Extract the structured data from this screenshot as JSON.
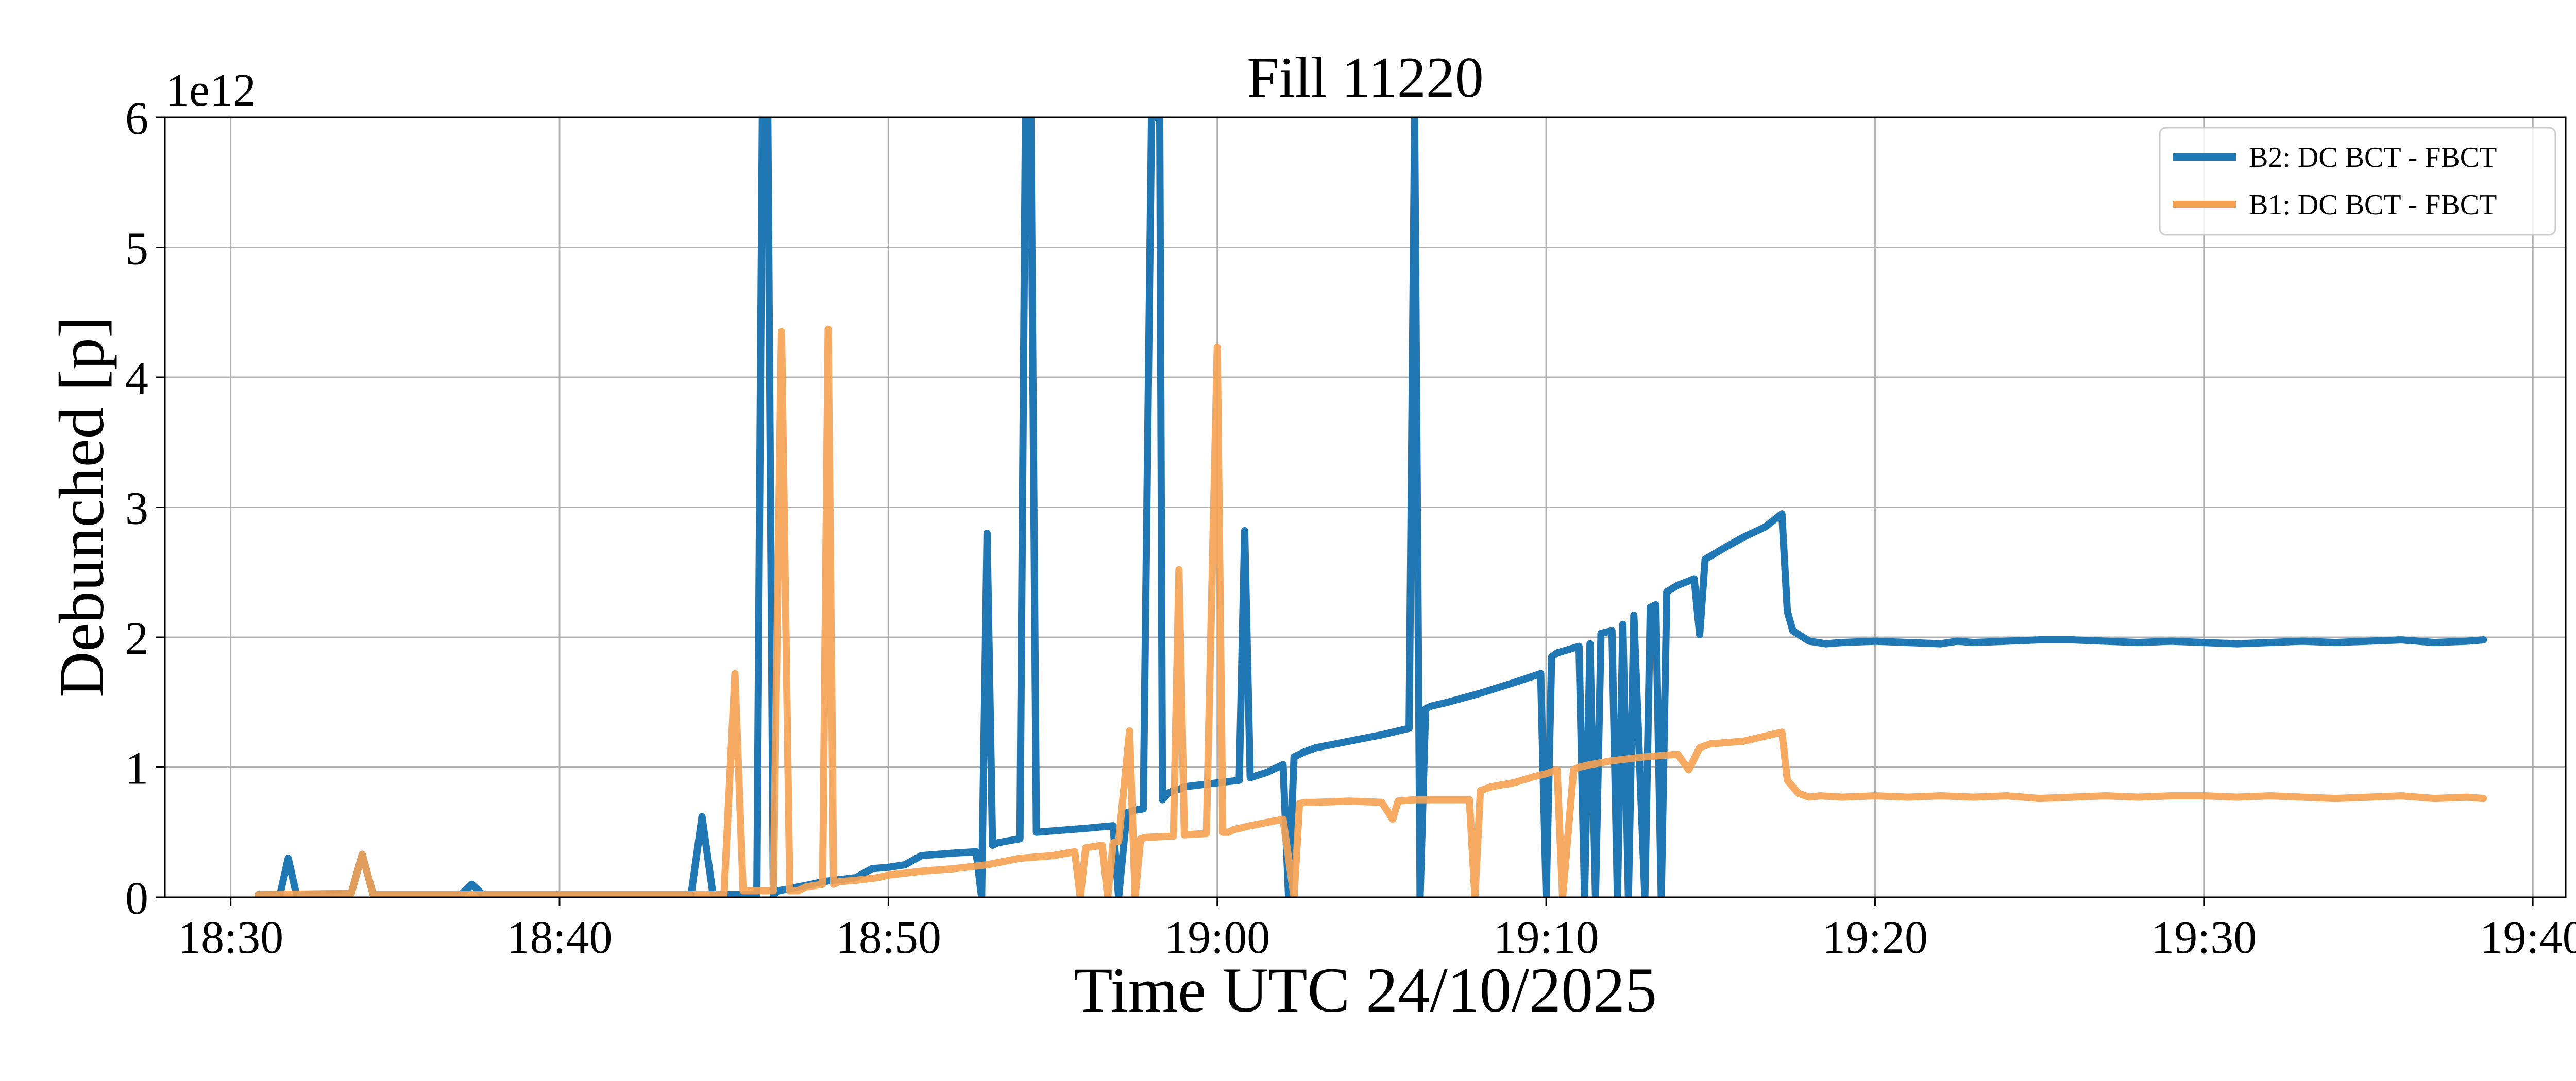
{
  "chart_data": {
    "type": "line",
    "title": "Fill 11220",
    "xlabel": "Time UTC 24/10/2025",
    "ylabel": "Debunched [p]",
    "y_exponent_label": "1e12",
    "xlim": [
      "18:28",
      "19:41"
    ],
    "ylim": [
      0,
      6
    ],
    "y_ticks": [
      0,
      1,
      2,
      3,
      4,
      5,
      6
    ],
    "y_tick_labels": [
      "0",
      "1",
      "2",
      "3",
      "4",
      "5",
      "6"
    ],
    "x_ticks": [
      "18:30",
      "18:40",
      "18:50",
      "19:00",
      "19:10",
      "19:20",
      "19:30",
      "19:40"
    ],
    "grid": true,
    "legend_position": "upper right",
    "series": [
      {
        "name": "B2: DC BCT - FBCT",
        "color": "#1f77b4",
        "x": [
          "18:30:50",
          "18:31:30",
          "18:31:45",
          "18:32:00",
          "18:33:40",
          "18:34:00",
          "18:34:20",
          "18:37:00",
          "18:37:20",
          "18:37:40",
          "18:44:00",
          "18:44:20",
          "18:44:40",
          "18:46:00",
          "18:46:10",
          "18:46:20",
          "18:46:30",
          "18:46:40",
          "18:47:40",
          "18:48:00",
          "18:49:00",
          "18:49:30",
          "18:50:00",
          "18:50:30",
          "18:51:00",
          "18:52:00",
          "18:52:40",
          "18:52:50",
          "18:53:00",
          "18:53:10",
          "18:53:20",
          "18:54:00",
          "18:54:10",
          "18:54:20",
          "18:54:30",
          "18:55:00",
          "18:56:00",
          "18:56:50",
          "18:57:00",
          "18:57:15",
          "18:57:30",
          "18:57:45",
          "18:58:00",
          "18:58:15",
          "18:58:20",
          "18:58:30",
          "18:58:40",
          "18:58:50",
          "18:59:00",
          "19:00:00",
          "19:00:40",
          "19:00:50",
          "19:01:00",
          "19:01:30",
          "19:02:00",
          "19:02:10",
          "19:02:20",
          "19:02:40",
          "19:03:00",
          "19:04:00",
          "19:05:00",
          "19:05:50",
          "19:06:00",
          "19:06:10",
          "19:06:20",
          "19:06:30",
          "19:07:00",
          "19:08:00",
          "19:09:00",
          "19:09:50",
          "19:10:00",
          "19:10:10",
          "19:10:20",
          "19:11:00",
          "19:11:10",
          "19:11:20",
          "19:11:30",
          "19:11:40",
          "19:12:00",
          "19:12:10",
          "19:12:20",
          "19:12:30",
          "19:12:40",
          "19:13:00",
          "19:13:10",
          "19:13:20",
          "19:13:30",
          "19:13:40",
          "19:14:00",
          "19:14:30",
          "19:14:40",
          "19:14:50",
          "19:15:10",
          "19:15:30",
          "19:16:00",
          "19:16:40",
          "19:17:10",
          "19:17:20",
          "19:17:30",
          "19:18:00",
          "19:18:30",
          "19:19:00",
          "19:20:00",
          "19:21:00",
          "19:22:00",
          "19:22:30",
          "19:23:00",
          "19:24:00",
          "19:25:00",
          "19:26:00",
          "19:27:00",
          "19:28:00",
          "19:29:00",
          "19:30:00",
          "19:31:00",
          "19:32:00",
          "19:33:00",
          "19:34:00",
          "19:35:00",
          "19:36:00",
          "19:37:00",
          "19:38:00",
          "19:38:30"
        ],
        "values": [
          0.02,
          0.02,
          0.3,
          0.02,
          0.03,
          0.33,
          0.02,
          0.02,
          0.1,
          0.02,
          0.02,
          0.62,
          0.02,
          0.02,
          6.0,
          6.0,
          0.02,
          0.05,
          0.1,
          0.12,
          0.15,
          0.22,
          0.23,
          0.25,
          0.32,
          0.34,
          0.35,
          0.0,
          2.8,
          0.4,
          0.42,
          0.45,
          6.0,
          6.0,
          0.5,
          0.51,
          0.53,
          0.55,
          0.0,
          0.65,
          0.67,
          0.68,
          6.0,
          6.0,
          0.75,
          0.8,
          0.82,
          0.83,
          0.85,
          0.88,
          0.9,
          2.82,
          0.92,
          0.96,
          1.02,
          0.0,
          1.08,
          1.12,
          1.15,
          1.2,
          1.25,
          1.3,
          6.0,
          0.0,
          1.45,
          1.47,
          1.5,
          1.57,
          1.65,
          1.72,
          0.0,
          1.85,
          1.88,
          1.93,
          0.0,
          1.95,
          0.0,
          2.03,
          2.05,
          0.0,
          2.1,
          0.0,
          2.17,
          0.0,
          2.23,
          2.25,
          0.0,
          2.35,
          2.4,
          2.45,
          2.02,
          2.6,
          2.65,
          2.7,
          2.77,
          2.85,
          2.95,
          2.2,
          2.05,
          1.97,
          1.95,
          1.96,
          1.97,
          1.96,
          1.95,
          1.97,
          1.96,
          1.97,
          1.98,
          1.98,
          1.97,
          1.96,
          1.97,
          1.96,
          1.95,
          1.96,
          1.97,
          1.96,
          1.97,
          1.98,
          1.96,
          1.97,
          1.98
        ],
        "linewidth": 14
      },
      {
        "name": "B1: DC BCT - FBCT",
        "color": "#f5a151",
        "x": [
          "18:30:50",
          "18:33:40",
          "18:34:00",
          "18:34:20",
          "18:45:00",
          "18:45:20",
          "18:45:35",
          "18:45:50",
          "18:46:30",
          "18:46:45",
          "18:47:00",
          "18:47:15",
          "18:47:30",
          "18:48:00",
          "18:48:10",
          "18:48:20",
          "18:48:30",
          "18:49:00",
          "18:49:40",
          "18:50:00",
          "18:51:00",
          "18:52:00",
          "18:53:00",
          "18:54:00",
          "18:55:00",
          "18:55:40",
          "18:55:50",
          "18:56:00",
          "18:56:30",
          "18:56:40",
          "18:56:50",
          "18:57:00",
          "18:57:20",
          "18:57:30",
          "18:57:40",
          "18:57:50",
          "18:58:40",
          "18:58:50",
          "18:59:00",
          "18:59:40",
          "19:00:00",
          "19:00:10",
          "19:00:20",
          "19:00:30",
          "19:01:00",
          "19:02:00",
          "19:02:20",
          "19:02:30",
          "19:02:40",
          "19:03:00",
          "19:04:00",
          "19:05:00",
          "19:05:20",
          "19:05:30",
          "19:06:00",
          "19:07:00",
          "19:07:40",
          "19:07:50",
          "19:08:00",
          "19:08:20",
          "19:09:00",
          "19:09:40",
          "19:10:00",
          "19:10:20",
          "19:10:30",
          "19:10:50",
          "19:11:00",
          "19:11:20",
          "19:12:00",
          "19:13:00",
          "19:14:00",
          "19:14:20",
          "19:14:40",
          "19:15:00",
          "19:16:00",
          "19:17:10",
          "19:17:20",
          "19:17:40",
          "19:18:00",
          "19:18:20",
          "19:19:00",
          "19:20:00",
          "19:21:00",
          "19:22:00",
          "19:23:00",
          "19:24:00",
          "19:25:00",
          "19:26:00",
          "19:27:00",
          "19:28:00",
          "19:29:00",
          "19:30:00",
          "19:31:00",
          "19:32:00",
          "19:33:00",
          "19:34:00",
          "19:35:00",
          "19:36:00",
          "19:37:00",
          "19:38:00",
          "19:38:30"
        ],
        "values": [
          0.02,
          0.03,
          0.33,
          0.02,
          0.02,
          1.72,
          0.05,
          0.05,
          0.05,
          4.35,
          0.05,
          0.05,
          0.08,
          0.1,
          4.37,
          0.1,
          0.12,
          0.13,
          0.15,
          0.17,
          0.2,
          0.22,
          0.25,
          0.3,
          0.32,
          0.35,
          0.0,
          0.38,
          0.4,
          0.0,
          0.42,
          0.43,
          1.28,
          0.0,
          0.45,
          0.46,
          0.47,
          2.52,
          0.48,
          0.49,
          4.23,
          0.5,
          0.5,
          0.52,
          0.55,
          0.6,
          0.0,
          0.72,
          0.73,
          0.73,
          0.74,
          0.73,
          0.6,
          0.74,
          0.75,
          0.75,
          0.75,
          0.0,
          0.82,
          0.85,
          0.88,
          0.93,
          0.95,
          0.98,
          0.0,
          0.98,
          1.0,
          1.02,
          1.05,
          1.08,
          1.1,
          0.98,
          1.15,
          1.18,
          1.2,
          1.27,
          0.9,
          0.8,
          0.77,
          0.78,
          0.77,
          0.78,
          0.77,
          0.78,
          0.77,
          0.78,
          0.76,
          0.77,
          0.78,
          0.77,
          0.78,
          0.78,
          0.77,
          0.78,
          0.77,
          0.76,
          0.77,
          0.78,
          0.76,
          0.77,
          0.76
        ],
        "linewidth": 14
      }
    ]
  }
}
